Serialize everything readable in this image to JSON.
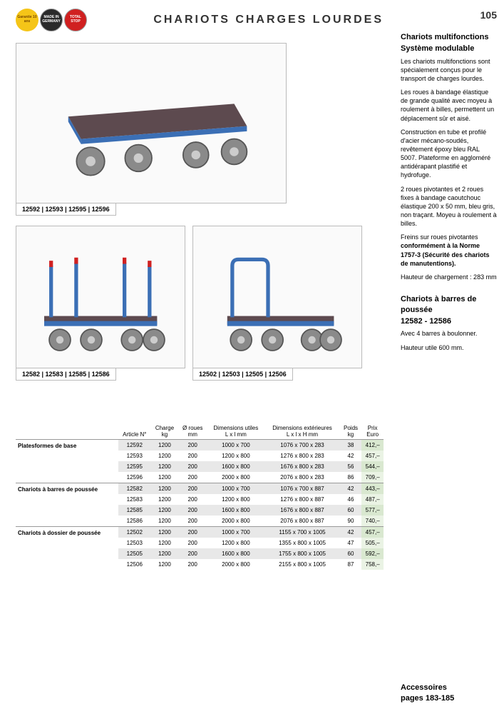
{
  "header": {
    "title": "CHARIOTS CHARGES LOURDES",
    "page_number": "105",
    "badges": [
      {
        "label": "Garantie 10 ans",
        "class": "badge-yellow"
      },
      {
        "label": "MADE IN GERMANY",
        "class": "badge-dark"
      },
      {
        "label": "TOTAL STOP",
        "class": "badge-red"
      }
    ]
  },
  "products": {
    "top": {
      "caption": "12592 | 12593 | 12595 | 12596",
      "type": "platform"
    },
    "bottom_left": {
      "caption": "12582 | 12583 | 12585 | 12586",
      "type": "stanchion"
    },
    "bottom_right": {
      "caption": "12502 | 12503 | 12505 | 12506",
      "type": "pushbar"
    }
  },
  "sidebar": {
    "section1": {
      "title1": "Chariots multifonctions",
      "title2": "Système modulable",
      "p1": "Les chariots multifonctions sont spécialement conçus pour le transport de charges lourdes.",
      "p2": "Les roues à bandage élastique de grande qualité avec moyeu à roulement à billes, permettent un déplacement sûr et aisé.",
      "p3": "Construction en tube et profilé d'acier mécano-soudés, revêtement époxy bleu RAL 5007. Plateforme en aggloméré antidérapant plastifié et hydrofuge.",
      "p4": "2 roues pivotantes et 2 roues fixes à bandage caoutchouc élastique 200 x 50 mm, bleu gris, non traçant. Moyeu à roulement à billes.",
      "p5a": "Freins sur roues pivotantes ",
      "p5b": "conformément à la Norme 1757-3 (Sécurité des chariots de manutentions).",
      "p6": "Hauteur de chargement : 283 mm"
    },
    "section2": {
      "title1": "Chariots à barres de poussée",
      "title2": "12582 - 12586",
      "p1": "Avec 4 barres à boulonner.",
      "p2": "Hauteur utile 600 mm."
    },
    "footer1": "Accessoires",
    "footer2": "pages 183-185"
  },
  "table": {
    "columns": [
      "",
      "Article N°",
      "Charge\nkg",
      "Ø roues\nmm",
      "Dimensions utiles\nL x l mm",
      "Dimensions extérieures\nL x l x H mm",
      "Poids\nkg",
      "Prix\nEuro"
    ],
    "groups": [
      {
        "name": "Platesformes de base",
        "rows": [
          [
            "12592",
            "1200",
            "200",
            "1000 x 700",
            "1076 x 700 x 283",
            "38",
            "412,–"
          ],
          [
            "12593",
            "1200",
            "200",
            "1200 x 800",
            "1276 x 800 x 283",
            "42",
            "457,–"
          ],
          [
            "12595",
            "1200",
            "200",
            "1600 x 800",
            "1676 x 800 x 283",
            "56",
            "544,–"
          ],
          [
            "12596",
            "1200",
            "200",
            "2000 x 800",
            "2076 x 800 x 283",
            "86",
            "709,–"
          ]
        ]
      },
      {
        "name": "Chariots à barres de poussée",
        "rows": [
          [
            "12582",
            "1200",
            "200",
            "1000 x 700",
            "1076 x 700 x 887",
            "42",
            "443,–"
          ],
          [
            "12583",
            "1200",
            "200",
            "1200 x 800",
            "1276 x 800 x 887",
            "46",
            "487,–"
          ],
          [
            "12585",
            "1200",
            "200",
            "1600 x 800",
            "1676 x 800 x 887",
            "60",
            "577,–"
          ],
          [
            "12586",
            "1200",
            "200",
            "2000 x 800",
            "2076 x 800 x 887",
            "90",
            "740,–"
          ]
        ]
      },
      {
        "name": "Chariots à dossier de poussée",
        "rows": [
          [
            "12502",
            "1200",
            "200",
            "1000 x 700",
            "1155 x 700 x 1005",
            "42",
            "457,–"
          ],
          [
            "12503",
            "1200",
            "200",
            "1200 x 800",
            "1355 x 800 x 1005",
            "47",
            "505,–"
          ],
          [
            "12505",
            "1200",
            "200",
            "1600 x 800",
            "1755 x 800 x 1005",
            "60",
            "592,–"
          ],
          [
            "12506",
            "1200",
            "200",
            "2000 x 800",
            "2155 x 800 x 1005",
            "87",
            "758,–"
          ]
        ]
      }
    ]
  },
  "colors": {
    "frame_blue": "#3b6fb5",
    "platform": "#5d4a4f",
    "wheel": "#8a8a8a",
    "red_tip": "#d02020"
  }
}
